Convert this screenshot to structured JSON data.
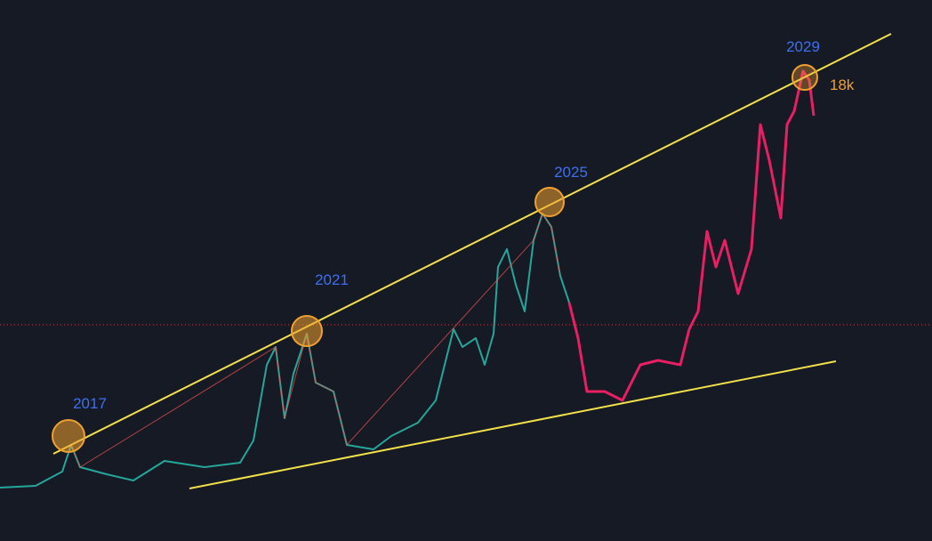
{
  "annotations": [
    {
      "label": "2017"
    },
    {
      "label": "2021"
    },
    {
      "label": "2025"
    },
    {
      "label": "2029"
    }
  ],
  "price_label": "18k"
}
